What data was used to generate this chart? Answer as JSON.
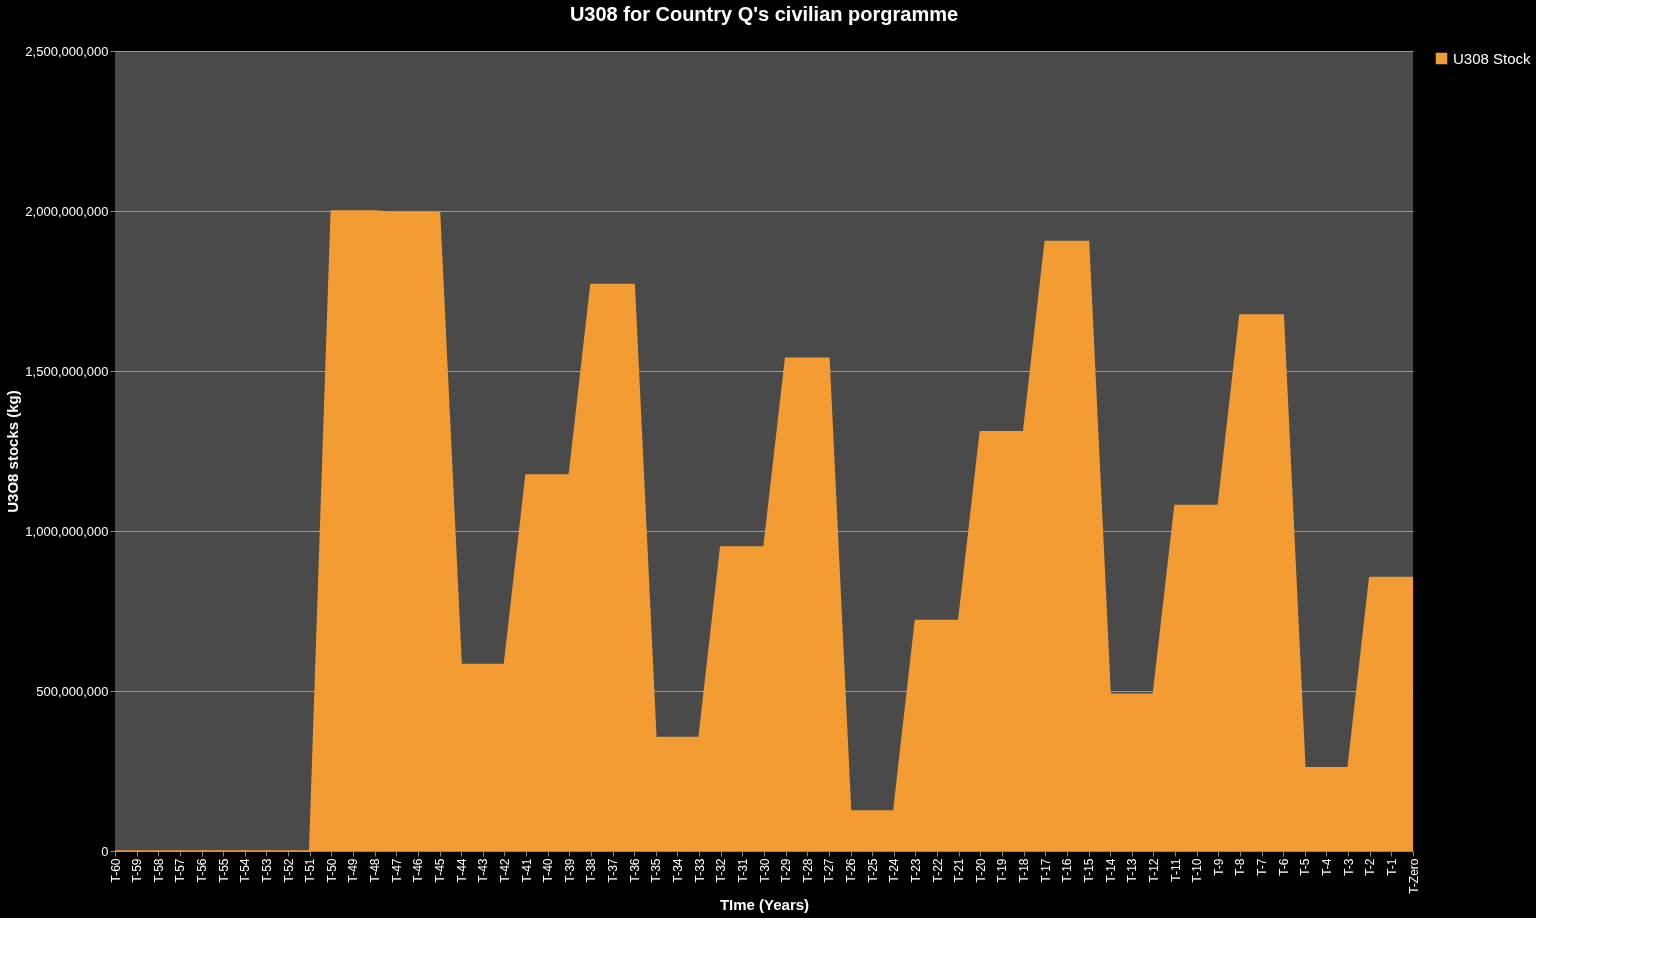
{
  "chart_data": {
    "type": "area",
    "title": "U308 for Country Q's civilian porgramme",
    "xlabel": "TIme (Years)",
    "ylabel": "U3O8 stocks (kg)",
    "categories": [
      "T-60",
      "T-59",
      "T-58",
      "T-57",
      "T-56",
      "T-55",
      "T-54",
      "T-53",
      "T-52",
      "T-51",
      "T-50",
      "T-49",
      "T-48",
      "T-47",
      "T-46",
      "T-45",
      "T-44",
      "T-43",
      "T-42",
      "T-41",
      "T-40",
      "T-39",
      "T-38",
      "T-37",
      "T-36",
      "T-35",
      "T-34",
      "T-33",
      "T-32",
      "T-31",
      "T-30",
      "T-29",
      "T-28",
      "T-27",
      "T-26",
      "T-25",
      "T-24",
      "T-23",
      "T-22",
      "T-21",
      "T-20",
      "T-19",
      "T-18",
      "T-17",
      "T-16",
      "T-15",
      "T-14",
      "T-13",
      "T-12",
      "T-11",
      "T-10",
      "T-9",
      "T-8",
      "T-7",
      "T-6",
      "T-5",
      "T-4",
      "T-3",
      "T-2",
      "T-1",
      "T-Zero"
    ],
    "series": [
      {
        "name": "U308 Stock",
        "color": "#f39c34",
        "values": [
          0,
          0,
          0,
          0,
          0,
          0,
          0,
          0,
          0,
          0,
          2000000000,
          2000000000,
          2000000000,
          1995000000,
          1995000000,
          1995000000,
          583000000,
          583000000,
          583000000,
          1175000000,
          1175000000,
          1175000000,
          1770000000,
          1770000000,
          1770000000,
          355000000,
          355000000,
          355000000,
          950000000,
          950000000,
          950000000,
          1540000000,
          1540000000,
          1540000000,
          125000000,
          125000000,
          125000000,
          720000000,
          720000000,
          720000000,
          1310000000,
          1310000000,
          1310000000,
          1905000000,
          1905000000,
          1905000000,
          490000000,
          490000000,
          490000000,
          1080000000,
          1080000000,
          1080000000,
          1675000000,
          1675000000,
          1675000000,
          260000000,
          260000000,
          260000000,
          855000000,
          855000000,
          855000000
        ]
      }
    ],
    "ylim": [
      0,
      2500000000
    ],
    "yticks": [
      0,
      {
        "value": 500000000,
        "label": "500,000,000"
      },
      {
        "value": 1000000000,
        "label": "1,000,000,000"
      },
      {
        "value": 1500000000,
        "label": "1,500,000,000"
      },
      {
        "value": 2000000000,
        "label": "2,000,000,000"
      },
      {
        "value": 2500000000,
        "label": "2,500,000,000"
      }
    ],
    "grid": "y",
    "legend": "right"
  }
}
